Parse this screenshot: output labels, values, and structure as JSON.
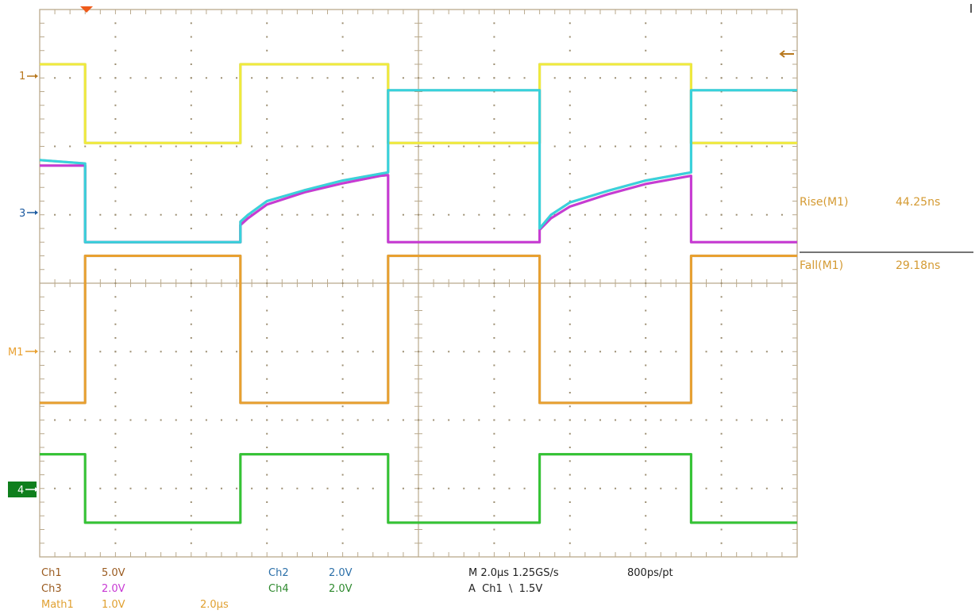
{
  "colors": {
    "background": "#ffffff",
    "grid": "#b9a98c",
    "dot": "#9d8f73",
    "ch1": "#f0ea3c",
    "ch2": "#38d2dc",
    "ch3": "#c83ad4",
    "ch4": "#34c434",
    "math1": "#e8a030",
    "marker_ch1": "#b8781e",
    "marker_ch2": "#1c5aa0",
    "marker_m1": "#e8a030",
    "marker_ch4_bg": "#0f7f1d",
    "trigger": "#ef5a1a",
    "settings_ch": "#9a5b20",
    "settings_blue": "#2b6fa8",
    "settings_green": "#2f8a2f",
    "settings_math": "#e0a030",
    "settings_time": "#222222",
    "measurement_text": "#d49a32"
  },
  "markers": {
    "ch1": "1",
    "ch2_ch3": "3",
    "m1": "M1",
    "ch4": "4"
  },
  "measurements": [
    {
      "label": "Rise(M1)",
      "value": "44.25ns"
    },
    {
      "label": "Fall(M1)",
      "value": "29.18ns"
    }
  ],
  "settings": {
    "ch1_label": "Ch1",
    "ch1_scale": "5.0V",
    "ch2_label": "Ch2",
    "ch2_scale": "2.0V",
    "ch3_label": "Ch3",
    "ch3_scale": "2.0V",
    "ch4_label": "Ch4",
    "ch4_scale": "2.0V",
    "math1_label": "Math1",
    "math1_scale": "1.0V",
    "math1_time": "2.0µs",
    "horizontal": "M 2.0µs 1.25GS/s",
    "record": "800ps/pt",
    "trigger": "A  Ch1  \\  1.5V"
  },
  "chart_data": {
    "type": "line",
    "x_unit": "µs",
    "xlim": [
      -10,
      10
    ],
    "ylim": [
      -4,
      4
    ],
    "grid": true,
    "x_divisions": 10,
    "y_divisions": 8,
    "series": [
      {
        "name": "Ch1",
        "unit": "div",
        "points": [
          [
            -10,
            3.2
          ],
          [
            -8.8,
            3.2
          ],
          [
            -8.8,
            2.05
          ],
          [
            -4.7,
            2.05
          ],
          [
            -4.7,
            3.2
          ],
          [
            -0.8,
            3.2
          ],
          [
            -0.8,
            2.05
          ],
          [
            3.2,
            2.05
          ],
          [
            3.2,
            3.2
          ],
          [
            7.2,
            3.2
          ],
          [
            7.2,
            2.05
          ],
          [
            10,
            2.05
          ]
        ]
      },
      {
        "name": "Ch2",
        "unit": "div",
        "points": [
          [
            -10,
            1.8
          ],
          [
            -8.8,
            1.75
          ],
          [
            -8.8,
            0.6
          ],
          [
            -4.7,
            0.6
          ],
          [
            -4.7,
            0.9
          ],
          [
            -4.5,
            1.0
          ],
          [
            -4.0,
            1.2
          ],
          [
            -3.0,
            1.36
          ],
          [
            -2.0,
            1.5
          ],
          [
            -1.0,
            1.6
          ],
          [
            -0.8,
            1.62
          ],
          [
            -0.8,
            2.82
          ],
          [
            3.2,
            2.82
          ],
          [
            3.2,
            0.8
          ],
          [
            3.5,
            1.0
          ],
          [
            4.0,
            1.18
          ],
          [
            5.0,
            1.35
          ],
          [
            6.0,
            1.5
          ],
          [
            7.0,
            1.6
          ],
          [
            7.2,
            1.62
          ],
          [
            7.2,
            2.82
          ],
          [
            10,
            2.82
          ]
        ]
      },
      {
        "name": "Ch3",
        "unit": "div",
        "points": [
          [
            -10,
            1.72
          ],
          [
            -8.8,
            1.72
          ],
          [
            -8.8,
            0.6
          ],
          [
            -4.7,
            0.6
          ],
          [
            -4.7,
            0.85
          ],
          [
            -4.5,
            0.95
          ],
          [
            -4.0,
            1.15
          ],
          [
            -3.0,
            1.33
          ],
          [
            -2.0,
            1.46
          ],
          [
            -1.0,
            1.57
          ],
          [
            -0.8,
            1.58
          ],
          [
            -0.8,
            0.6
          ],
          [
            3.2,
            0.6
          ],
          [
            3.2,
            0.78
          ],
          [
            3.5,
            0.95
          ],
          [
            4.0,
            1.12
          ],
          [
            5.0,
            1.3
          ],
          [
            6.0,
            1.45
          ],
          [
            7.0,
            1.55
          ],
          [
            7.2,
            1.57
          ],
          [
            7.2,
            0.6
          ],
          [
            10,
            0.6
          ]
        ]
      },
      {
        "name": "Math1",
        "unit": "div",
        "points": [
          [
            -10,
            -1.75
          ],
          [
            -8.8,
            -1.75
          ],
          [
            -8.8,
            0.4
          ],
          [
            -4.7,
            0.4
          ],
          [
            -4.7,
            -1.75
          ],
          [
            -0.8,
            -1.75
          ],
          [
            -0.8,
            0.4
          ],
          [
            3.2,
            0.4
          ],
          [
            3.2,
            -1.75
          ],
          [
            7.2,
            -1.75
          ],
          [
            7.2,
            0.4
          ],
          [
            10,
            0.4
          ]
        ]
      },
      {
        "name": "Ch4",
        "unit": "div",
        "points": [
          [
            -10,
            -2.5
          ],
          [
            -8.8,
            -2.5
          ],
          [
            -8.8,
            -3.5
          ],
          [
            -4.7,
            -3.5
          ],
          [
            -4.7,
            -2.5
          ],
          [
            -0.8,
            -2.5
          ],
          [
            -0.8,
            -3.5
          ],
          [
            3.2,
            -3.5
          ],
          [
            3.2,
            -2.5
          ],
          [
            7.2,
            -2.5
          ],
          [
            7.2,
            -3.5
          ],
          [
            10,
            -3.5
          ]
        ]
      }
    ]
  }
}
